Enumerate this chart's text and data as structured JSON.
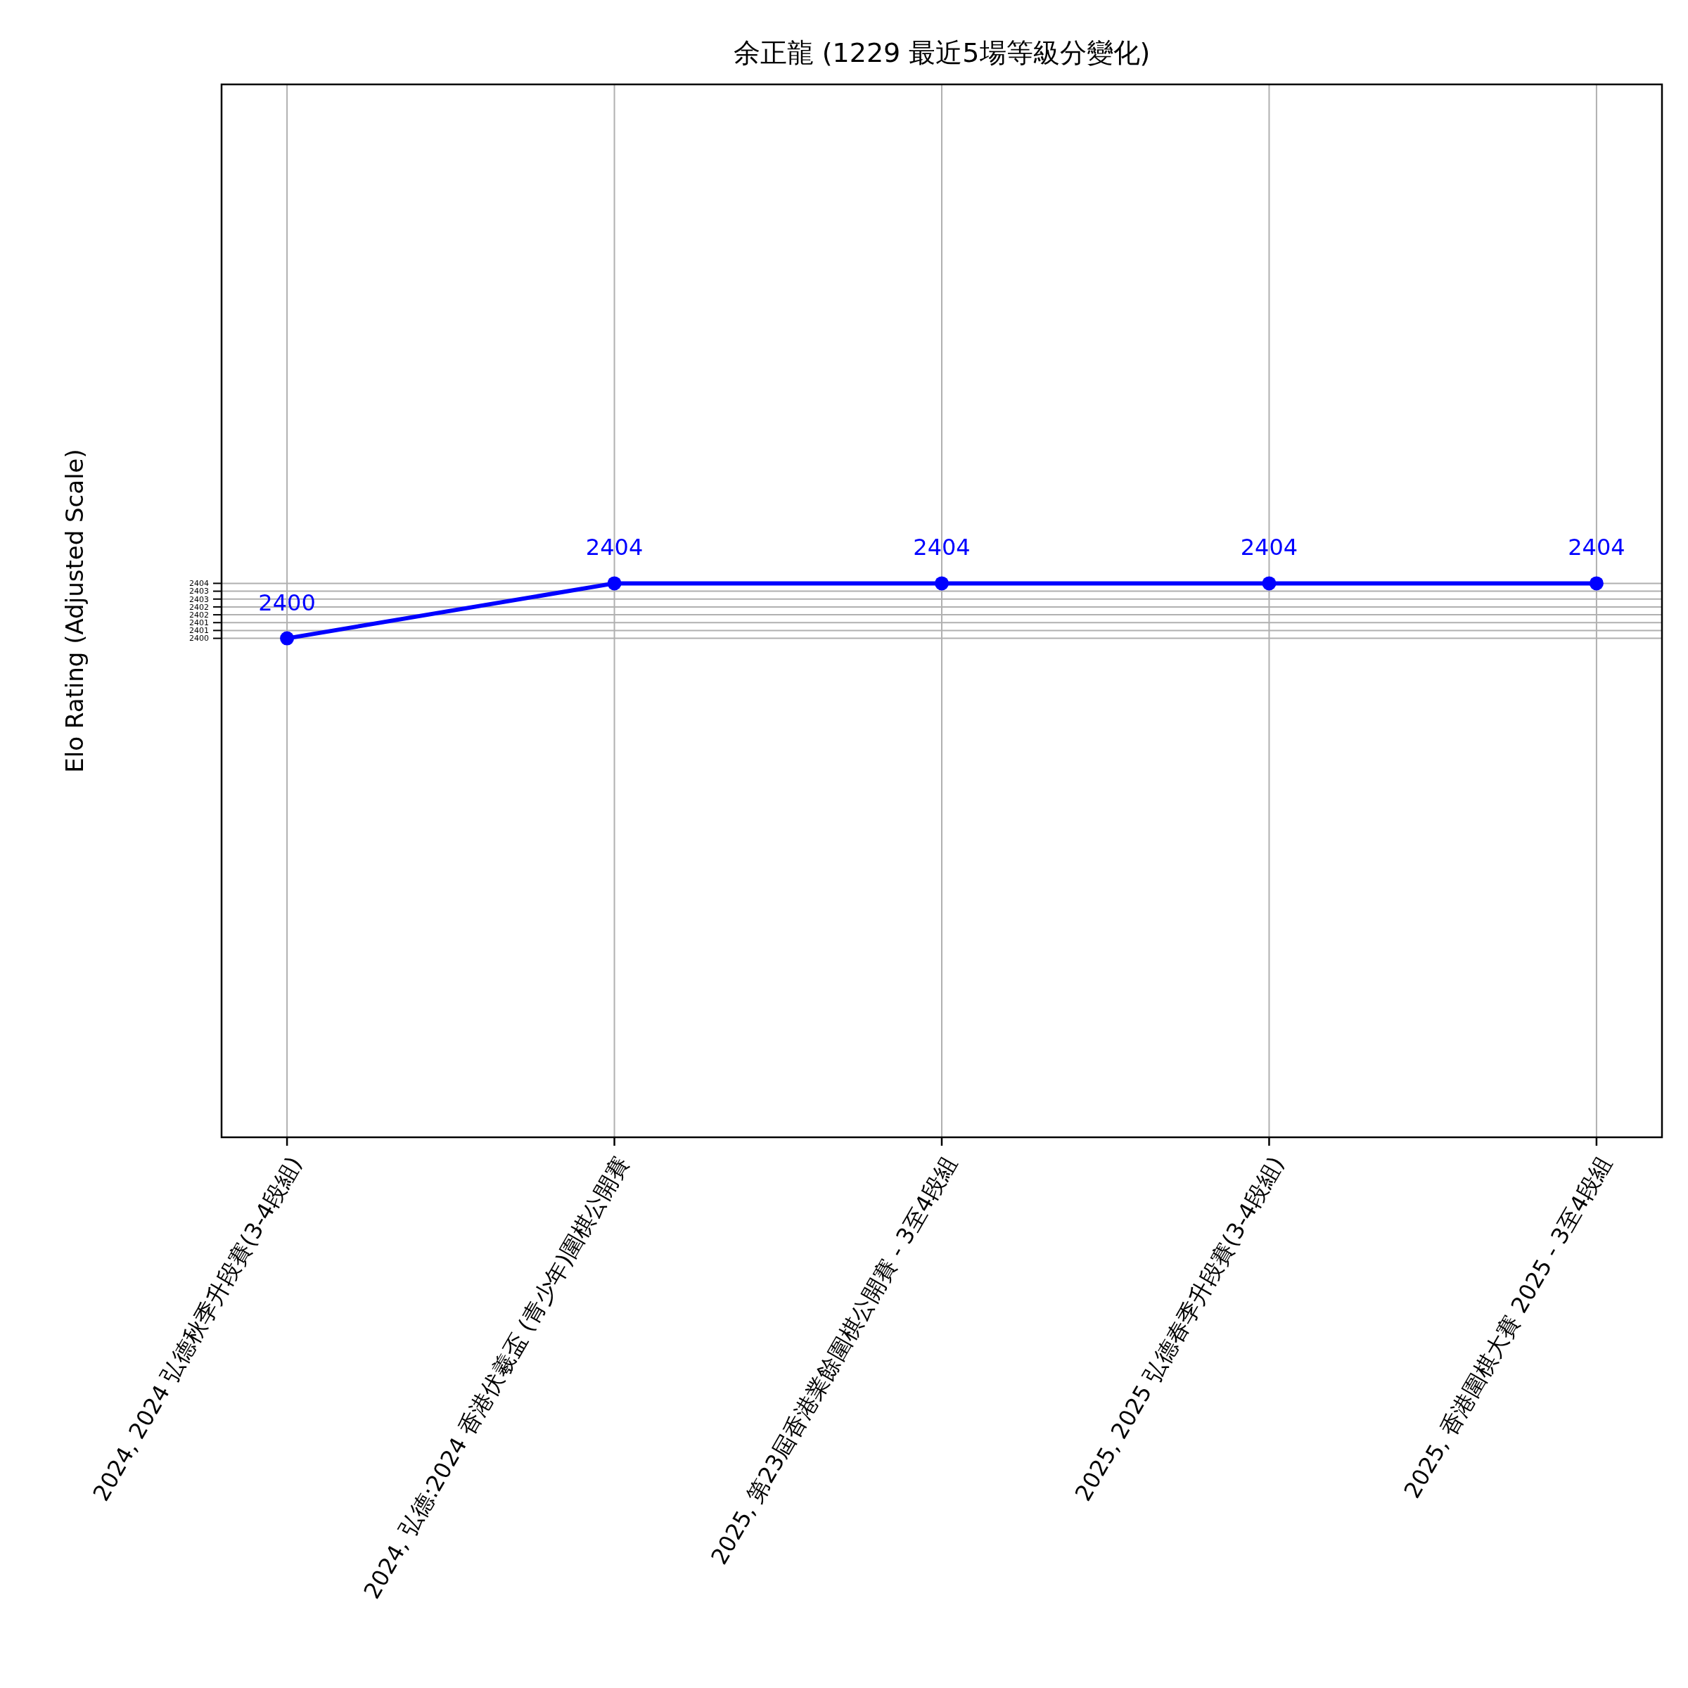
{
  "chart_data": {
    "type": "line",
    "title": "余正龍 (1229 最近5場等級分變化)",
    "ylabel": "Elo Rating (Adjusted Scale)",
    "categories": [
      "2024, 2024 弘德秋季升段賽(3-4段組)",
      "2024, 弘德:2024 香港伏羲盃 (青少年)圍棋公開賽",
      "2025, 第23屆香港業餘圍棋公開賽 - 3至4段組",
      "2025, 2025 弘德春季升段賽(3-4段組)",
      "2025, 香港圍棋大賽 2025 - 3至4段組"
    ],
    "series": [
      {
        "color": "#0000ff",
        "values": [
          2400,
          2404,
          2404,
          2404,
          2404
        ]
      }
    ],
    "ylim": [
      2363.7,
      2440.3
    ],
    "yticks": [
      2400,
      {
        "value": 2400.571,
        "label": "2401"
      },
      {
        "value": 2401.143,
        "label": "2401"
      },
      {
        "value": 2401.714,
        "label": "2402"
      },
      {
        "value": 2402.286,
        "label": "2402"
      },
      {
        "value": 2402.857,
        "label": "2403"
      },
      {
        "value": 2403.429,
        "label": "2403"
      },
      2404
    ],
    "data_labels": true,
    "grid": true,
    "marker": "circle",
    "line_style": "solid"
  }
}
